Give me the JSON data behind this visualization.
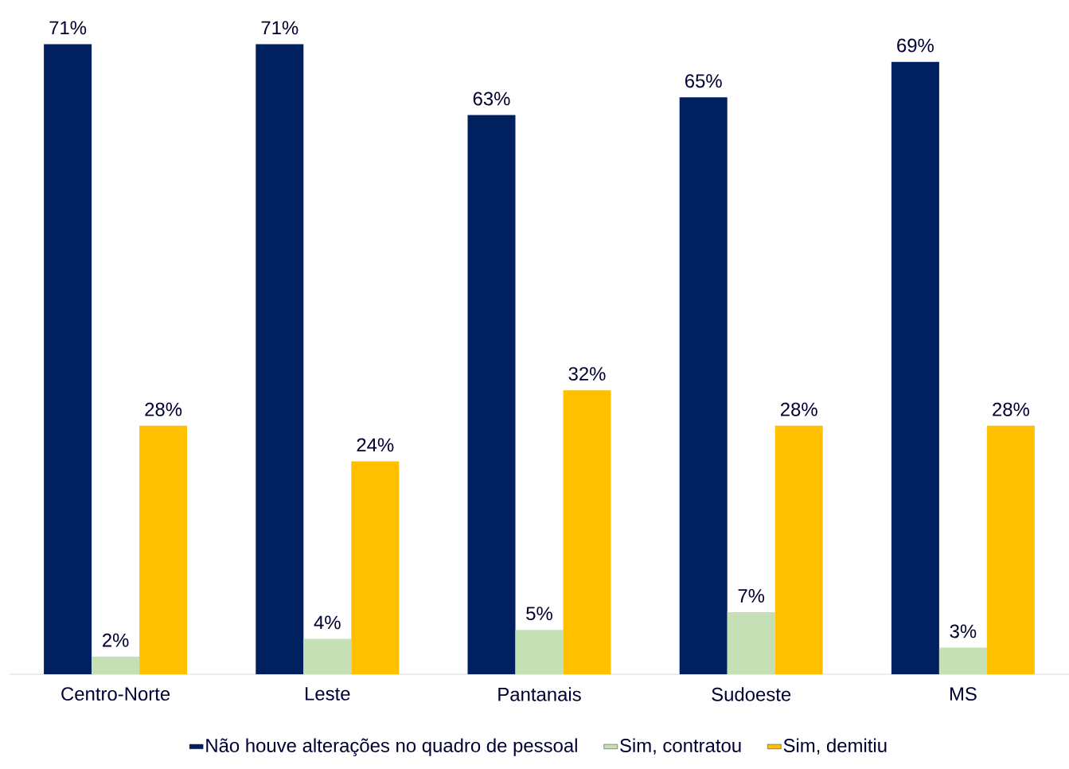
{
  "chart_data": {
    "type": "bar",
    "categories": [
      "Centro-Norte",
      "Leste",
      "Pantanais",
      "Sudoeste",
      "MS"
    ],
    "series": [
      {
        "name": "Não houve alterações no quadro de pessoal",
        "color": "#002060",
        "values": [
          71,
          71,
          63,
          65,
          69
        ],
        "value_labels": [
          "71%",
          "71%",
          "63%",
          "65%",
          "69%"
        ]
      },
      {
        "name": "Sim, contratou",
        "color": "#C5E0B4",
        "values": [
          2,
          4,
          5,
          7,
          3
        ],
        "value_labels": [
          "2%",
          "4%",
          "5%",
          "7%",
          "3%"
        ]
      },
      {
        "name": "Sim, demitiu",
        "color": "#FFC000",
        "values": [
          28,
          24,
          32,
          28,
          28
        ],
        "value_labels": [
          "28%",
          "24%",
          "32%",
          "28%",
          "28%"
        ]
      }
    ],
    "tick_labels": "x",
    "legend": "bottom",
    "grid": false
  }
}
